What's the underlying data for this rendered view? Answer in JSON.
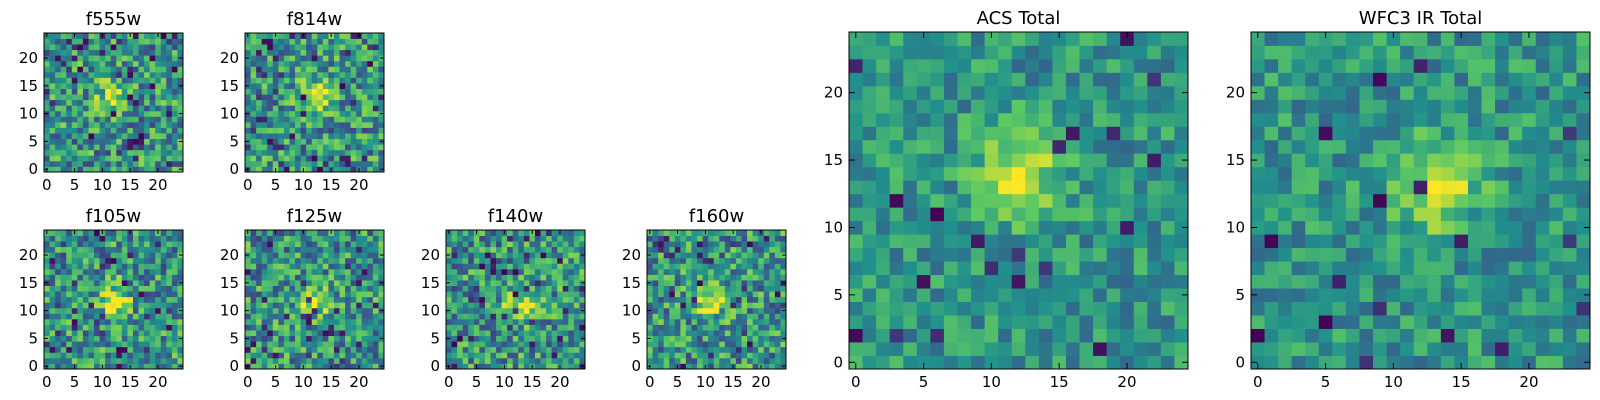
{
  "chart_data": [
    {
      "type": "heatmap",
      "title": "f555w",
      "xlabel": "",
      "ylabel": "",
      "grid_size": [
        25,
        25
      ],
      "xlim": [
        0,
        25
      ],
      "ylim": [
        0,
        25
      ],
      "xticks": [
        "0",
        "5",
        "10",
        "15",
        "20"
      ],
      "yticks": [
        "0",
        "5",
        "10",
        "15",
        "20"
      ],
      "colormap": "viridis",
      "source_peak": [
        12,
        13
      ],
      "grid": false
    },
    {
      "type": "heatmap",
      "title": "f814w",
      "xlabel": "",
      "ylabel": "",
      "grid_size": [
        25,
        25
      ],
      "xlim": [
        0,
        25
      ],
      "ylim": [
        0,
        25
      ],
      "xticks": [
        "0",
        "5",
        "10",
        "15",
        "20"
      ],
      "yticks": [
        "0",
        "5",
        "10",
        "15",
        "20"
      ],
      "colormap": "viridis",
      "source_peak": [
        12,
        13
      ],
      "grid": false
    },
    {
      "type": "heatmap",
      "title": "f105w",
      "xlabel": "",
      "ylabel": "",
      "grid_size": [
        25,
        25
      ],
      "xlim": [
        0,
        25
      ],
      "ylim": [
        0,
        25
      ],
      "xticks": [
        "0",
        "5",
        "10",
        "15",
        "20"
      ],
      "yticks": [
        "0",
        "5",
        "10",
        "15",
        "20"
      ],
      "colormap": "viridis",
      "source_peak": [
        12,
        12
      ],
      "grid": false
    },
    {
      "type": "heatmap",
      "title": "f125w",
      "xlabel": "",
      "ylabel": "",
      "grid_size": [
        25,
        25
      ],
      "xlim": [
        0,
        25
      ],
      "ylim": [
        0,
        25
      ],
      "xticks": [
        "0",
        "5",
        "10",
        "15",
        "20"
      ],
      "yticks": [
        "0",
        "5",
        "10",
        "15",
        "20"
      ],
      "colormap": "viridis",
      "source_peak": [
        12,
        12
      ],
      "grid": false
    },
    {
      "type": "heatmap",
      "title": "f140w",
      "xlabel": "",
      "ylabel": "",
      "grid_size": [
        25,
        25
      ],
      "xlim": [
        0,
        25
      ],
      "ylim": [
        0,
        25
      ],
      "xticks": [
        "0",
        "5",
        "10",
        "15",
        "20"
      ],
      "yticks": [
        "0",
        "5",
        "10",
        "15",
        "20"
      ],
      "colormap": "viridis",
      "source_peak": [
        13,
        11
      ],
      "grid": false
    },
    {
      "type": "heatmap",
      "title": "f160w",
      "xlabel": "",
      "ylabel": "",
      "grid_size": [
        25,
        25
      ],
      "xlim": [
        0,
        25
      ],
      "ylim": [
        0,
        25
      ],
      "xticks": [
        "0",
        "5",
        "10",
        "15",
        "20"
      ],
      "yticks": [
        "0",
        "5",
        "10",
        "15",
        "20"
      ],
      "colormap": "viridis",
      "source_peak": [
        11,
        12
      ],
      "grid": false
    },
    {
      "type": "heatmap",
      "title": "ACS Total",
      "xlabel": "",
      "ylabel": "",
      "grid_size": [
        25,
        25
      ],
      "xlim": [
        0,
        25
      ],
      "ylim": [
        0,
        25
      ],
      "xticks": [
        "0",
        "5",
        "10",
        "15",
        "20"
      ],
      "yticks": [
        "0",
        "5",
        "10",
        "15",
        "20"
      ],
      "colormap": "viridis",
      "source_peak": [
        12,
        14
      ],
      "grid": false
    },
    {
      "type": "heatmap",
      "title": "WFC3 IR Total",
      "xlabel": "",
      "ylabel": "",
      "grid_size": [
        25,
        25
      ],
      "xlim": [
        0,
        25
      ],
      "ylim": [
        0,
        25
      ],
      "xticks": [
        "0",
        "5",
        "10",
        "15",
        "20"
      ],
      "yticks": [
        "0",
        "5",
        "10",
        "15",
        "20"
      ],
      "colormap": "viridis",
      "source_peak": [
        13,
        13
      ],
      "grid": false
    }
  ],
  "colors": {
    "viridis": [
      "#440154",
      "#3b528b",
      "#21918c",
      "#5ec962",
      "#fde725"
    ],
    "axes": "#000000",
    "background": "#ffffff"
  }
}
